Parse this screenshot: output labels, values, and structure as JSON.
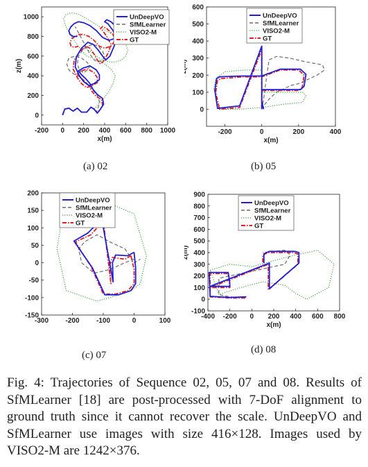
{
  "figure": {
    "caption": "Fig. 4: Trajectories of Sequence 02, 05, 07 and 08. Results of SfMLearner [18] are post-processed with 7-DoF alignment to ground truth since it cannot recover the scale. UnDeepVO and SfMLearner use images with size 416×128. Images used by VISO2-M are 1242×376."
  },
  "legend_colors": {
    "UnDeepVO": "#1f1fd6",
    "SfMLearner": "#6b6b6b",
    "VISO2-M": "#2e9e2e",
    "GT": "#e02020"
  },
  "chart_data": [
    {
      "type": "line",
      "panel_label": "(a) 02",
      "xlabel": "x(m)",
      "ylabel": "z(m)",
      "xlim": [
        -200,
        1000
      ],
      "ylim": [
        -100,
        1100
      ],
      "xticks": [
        "-200",
        "0",
        "200",
        "400",
        "600",
        "800",
        "1000"
      ],
      "yticks": [
        "0",
        "200",
        "400",
        "600",
        "800",
        "1000"
      ],
      "legend": [
        "UnDeepVO",
        "SfMLearner",
        "VISO2-M",
        "GT"
      ],
      "series": [
        {
          "name": "GT",
          "x": [
            0,
            20,
            60,
            100,
            140,
            180,
            230,
            270,
            300,
            330,
            360,
            380,
            370,
            320,
            280,
            250,
            210,
            170,
            140,
            180,
            240,
            300,
            330,
            330,
            280,
            230,
            180,
            140,
            100,
            110,
            160,
            220,
            260,
            300,
            330,
            360,
            400,
            440,
            460,
            420,
            380,
            360,
            380,
            420,
            480,
            500,
            460,
            400,
            350,
            300,
            250,
            200,
            160,
            120,
            90,
            70,
            80,
            110,
            150
          ],
          "y": [
            0,
            60,
            70,
            40,
            70,
            30,
            30,
            80,
            60,
            20,
            60,
            100,
            160,
            190,
            240,
            300,
            340,
            380,
            420,
            450,
            470,
            430,
            380,
            330,
            300,
            280,
            320,
            380,
            470,
            560,
            640,
            700,
            680,
            620,
            560,
            520,
            560,
            650,
            720,
            800,
            860,
            880,
            900,
            880,
            820,
            760,
            700,
            680,
            700,
            760,
            800,
            820,
            820,
            800,
            780,
            740,
            700,
            690,
            700
          ]
        },
        {
          "name": "UnDeepVO",
          "x": [
            0,
            20,
            60,
            100,
            140,
            180,
            230,
            270,
            300,
            330,
            360,
            390,
            380,
            330,
            290,
            260,
            220,
            180,
            150,
            200,
            260,
            320,
            350,
            350,
            300,
            250,
            200,
            160,
            120,
            130,
            180,
            240,
            290,
            340,
            380,
            410,
            450,
            490,
            510,
            480,
            430,
            400,
            420,
            460,
            520,
            550,
            500,
            440,
            380,
            320,
            260,
            200,
            150,
            110,
            80,
            60,
            70,
            100,
            140
          ],
          "y": [
            0,
            60,
            70,
            40,
            70,
            30,
            30,
            80,
            60,
            20,
            60,
            110,
            170,
            210,
            260,
            320,
            370,
            410,
            450,
            480,
            500,
            460,
            410,
            360,
            320,
            300,
            340,
            400,
            490,
            590,
            680,
            740,
            720,
            660,
            600,
            560,
            600,
            700,
            780,
            860,
            930,
            950,
            970,
            950,
            890,
            830,
            780,
            760,
            790,
            860,
            910,
            940,
            950,
            930,
            900,
            860,
            820,
            800,
            800
          ]
        },
        {
          "name": "SfMLearner",
          "x": [
            0,
            20,
            60,
            100,
            140,
            180,
            230,
            270,
            300,
            320,
            340,
            350,
            330,
            290,
            250,
            210,
            160,
            120,
            90,
            60,
            40,
            60,
            120,
            180,
            230,
            260,
            240,
            200,
            160,
            140,
            150,
            190,
            240,
            290,
            340,
            380,
            400,
            380,
            340,
            300,
            260,
            220,
            180,
            150,
            130,
            120
          ],
          "y": [
            0,
            60,
            70,
            40,
            70,
            30,
            30,
            80,
            60,
            30,
            80,
            140,
            200,
            250,
            300,
            350,
            390,
            410,
            430,
            460,
            520,
            580,
            600,
            580,
            540,
            500,
            460,
            430,
            460,
            520,
            600,
            660,
            700,
            720,
            700,
            650,
            600,
            560,
            540,
            560,
            620,
            700,
            780,
            840,
            880,
            900
          ]
        },
        {
          "name": "VISO2-M",
          "x": [
            0,
            20,
            60,
            100,
            140,
            180,
            230,
            270,
            300,
            340,
            390,
            440,
            480,
            500,
            460,
            400,
            340,
            280,
            230,
            190,
            150,
            110,
            70,
            40,
            20,
            10,
            30,
            80,
            140,
            200,
            260,
            320,
            380,
            440,
            500,
            560,
            600,
            620,
            600,
            560,
            500,
            440,
            380,
            320,
            260,
            200
          ],
          "y": [
            0,
            60,
            70,
            40,
            70,
            30,
            30,
            80,
            60,
            110,
            170,
            240,
            320,
            400,
            470,
            520,
            560,
            580,
            600,
            640,
            700,
            760,
            820,
            880,
            930,
            980,
            1020,
            1040,
            1030,
            1000,
            960,
            920,
            880,
            840,
            800,
            760,
            720,
            660,
            600,
            560,
            540,
            540,
            560,
            600,
            650,
            700
          ]
        }
      ]
    },
    {
      "type": "line",
      "panel_label": "(b) 05",
      "xlabel": "x(m)",
      "ylabel": "z(m)",
      "xlim": [
        -300,
        400
      ],
      "ylim": [
        -100,
        600
      ],
      "xticks": [
        "-200",
        "0",
        "200",
        "400"
      ],
      "yticks": [
        "0",
        "100",
        "200",
        "300",
        "400",
        "500",
        "600"
      ],
      "legend": [
        "UnDeepVO",
        "SfMLearner",
        "VISO2-M",
        "GT"
      ],
      "series": [
        {
          "name": "GT",
          "x": [
            0,
            0,
            0,
            0,
            0,
            -120,
            -230,
            -250,
            -240,
            -220,
            -100,
            0,
            100,
            200,
            230,
            220,
            200,
            100,
            0,
            0,
            10
          ],
          "y": [
            0,
            100,
            200,
            300,
            350,
            10,
            0,
            100,
            170,
            180,
            190,
            190,
            230,
            230,
            200,
            130,
            110,
            110,
            110,
            40,
            0
          ]
        },
        {
          "name": "UnDeepVO",
          "x": [
            0,
            0,
            0,
            0,
            0,
            -120,
            -240,
            -255,
            -245,
            -230,
            -110,
            0,
            100,
            210,
            240,
            230,
            210,
            100,
            0,
            0,
            10
          ],
          "y": [
            0,
            100,
            200,
            300,
            370,
            20,
            5,
            110,
            180,
            190,
            195,
            195,
            235,
            235,
            205,
            135,
            115,
            115,
            115,
            45,
            0
          ]
        },
        {
          "name": "SfMLearner",
          "x": [
            0,
            10,
            20,
            30,
            40,
            80,
            150,
            230,
            280,
            330,
            340,
            300,
            240,
            200,
            160,
            120,
            80,
            40,
            10
          ],
          "y": [
            0,
            60,
            140,
            220,
            290,
            310,
            300,
            280,
            270,
            260,
            230,
            200,
            170,
            150,
            140,
            120,
            100,
            60,
            20
          ]
        },
        {
          "name": "VISO2-M",
          "x": [
            0,
            0,
            0,
            -100,
            -200,
            -250,
            -260,
            -240,
            -220,
            -120,
            0,
            120,
            220,
            240,
            220,
            120,
            0,
            0
          ],
          "y": [
            0,
            120,
            230,
            230,
            220,
            180,
            120,
            40,
            0,
            0,
            10,
            30,
            40,
            80,
            100,
            100,
            100,
            0
          ]
        }
      ]
    },
    {
      "type": "line",
      "panel_label": "(c) 07",
      "xlabel": "",
      "ylabel": "",
      "xlim": [
        -300,
        100
      ],
      "ylim": [
        -150,
        200
      ],
      "xticks": [
        "-300",
        "-200",
        "-100",
        "0",
        "100"
      ],
      "yticks": [
        "-150",
        "-100",
        "-50",
        "0",
        "50",
        "100",
        "150",
        "200"
      ],
      "legend": [
        "UnDeepVO",
        "SfMLearner",
        "VISO2-M",
        "GT"
      ],
      "series": [
        {
          "name": "GT",
          "x": [
            -10,
            -30,
            -70,
            -80,
            -75,
            -100,
            -140,
            -190,
            -170,
            -140,
            -100,
            -60,
            -20,
            0,
            0,
            -10
          ],
          "y": [
            20,
            10,
            15,
            -10,
            -60,
            120,
            80,
            60,
            30,
            -10,
            -90,
            -90,
            -80,
            -60,
            -20,
            20
          ]
        },
        {
          "name": "UnDeepVO",
          "x": [
            0,
            -20,
            -60,
            -70,
            -68,
            -105,
            -150,
            -195,
            -170,
            -135,
            -95,
            -50,
            -10,
            5,
            5,
            0
          ],
          "y": [
            30,
            20,
            22,
            0,
            -55,
            125,
            85,
            62,
            30,
            -15,
            -92,
            -92,
            -80,
            -60,
            -15,
            30
          ]
        },
        {
          "name": "SfMLearner",
          "x": [
            0,
            -30,
            -80,
            -130,
            -170,
            -180,
            -160,
            -120,
            -80,
            -30,
            0,
            20
          ],
          "y": [
            10,
            0,
            -20,
            -30,
            0,
            40,
            60,
            80,
            60,
            40,
            0,
            10
          ]
        },
        {
          "name": "VISO2-M",
          "x": [
            -40,
            -120,
            -220,
            -250,
            -230,
            -160,
            -80,
            0,
            40,
            20,
            -10
          ],
          "y": [
            -90,
            -110,
            -80,
            40,
            150,
            190,
            170,
            140,
            20,
            -60,
            -80
          ]
        }
      ]
    },
    {
      "type": "line",
      "panel_label": "(d) 08",
      "xlabel": "x(m)",
      "ylabel": "z(m)",
      "xlim": [
        -400,
        800
      ],
      "ylim": [
        -100,
        900
      ],
      "xticks": [
        "-400",
        "-200",
        "0",
        "200",
        "400",
        "600",
        "800"
      ],
      "yticks": [
        "-100",
        "0",
        "100",
        "200",
        "300",
        "400",
        "500",
        "600",
        "700",
        "800",
        "900"
      ],
      "legend": [
        "UnDeepVO",
        "SfMLearner",
        "VISO2-M",
        "GT"
      ],
      "series": [
        {
          "name": "GT",
          "x": [
            -60,
            -200,
            -380,
            -380,
            -220,
            -200,
            -200,
            -380,
            150,
            150,
            420,
            420,
            380,
            150,
            100,
            100
          ],
          "y": [
            10,
            10,
            20,
            220,
            220,
            160,
            100,
            100,
            300,
            80,
            300,
            390,
            400,
            400,
            380,
            300
          ]
        },
        {
          "name": "UnDeepVO",
          "x": [
            -50,
            -200,
            -380,
            -390,
            -215,
            -205,
            -200,
            -380,
            160,
            160,
            430,
            430,
            390,
            160,
            110,
            110
          ],
          "y": [
            20,
            15,
            25,
            230,
            230,
            170,
            110,
            110,
            310,
            90,
            310,
            400,
            410,
            410,
            390,
            310
          ]
        },
        {
          "name": "SfMLearner",
          "x": [
            -60,
            -200,
            -300,
            -300,
            -100,
            100,
            300,
            350,
            300,
            100
          ],
          "y": [
            10,
            20,
            40,
            180,
            220,
            260,
            300,
            380,
            420,
            400
          ]
        },
        {
          "name": "VISO2-M",
          "x": [
            -380,
            -200,
            0,
            200,
            400,
            600,
            750,
            700,
            500,
            400,
            300,
            100,
            -100,
            -300,
            -380
          ],
          "y": [
            250,
            300,
            280,
            330,
            380,
            420,
            300,
            100,
            0,
            50,
            120,
            150,
            100,
            40,
            250
          ]
        }
      ]
    }
  ]
}
